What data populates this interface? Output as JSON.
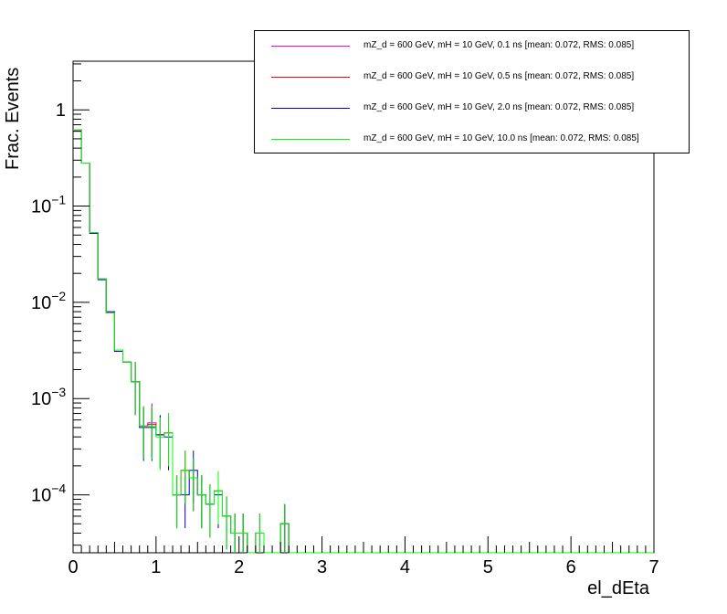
{
  "chart_data": {
    "type": "line",
    "xlabel": "el_dEta",
    "ylabel": "Frac. Events",
    "xlim": [
      0,
      7
    ],
    "ylim": [
      2.5e-05,
      3.2
    ],
    "yscale": "log",
    "x_ticks": [
      "0",
      "1",
      "2",
      "3",
      "4",
      "5",
      "6",
      "7"
    ],
    "y_ticks": [
      {
        "value": 1,
        "base": "1",
        "exp": ""
      },
      {
        "value": 0.1,
        "base": "10",
        "exp": "−1"
      },
      {
        "value": 0.01,
        "base": "10",
        "exp": "−2"
      },
      {
        "value": 0.001,
        "base": "10",
        "exp": "−3"
      },
      {
        "value": 0.0001,
        "base": "10",
        "exp": "−4"
      }
    ],
    "bin_width": 0.1,
    "legend_position": "top-right",
    "series": [
      {
        "name": "mZ_d = 600 GeV, mH = 10 GeV, 0.1 ns [mean: 0.072, RMS: 0.085]",
        "color": "#ff00ff",
        "values": [
          0.62,
          0.28,
          0.053,
          0.0175,
          0.0078,
          0.0032,
          0.0024,
          0.0015,
          0.00052,
          0.00056,
          0.00042,
          0.00044,
          0.0001,
          0.00018,
          0.00015,
          0.0001,
          8e-05,
          0.00011,
          6e-05,
          4e-05,
          4e-05,
          0,
          4e-05,
          0,
          0,
          5e-05,
          0
        ]
      },
      {
        "name": "mZ_d = 600 GeV, mH = 10 GeV, 0.5 ns [mean: 0.072, RMS: 0.085]",
        "color": "#ff0000",
        "values": [
          0.62,
          0.28,
          0.053,
          0.0175,
          0.0078,
          0.0032,
          0.0024,
          0.0015,
          0.00052,
          0.00054,
          0.00042,
          0.00044,
          0.0001,
          0.00018,
          0.00015,
          0.0001,
          8e-05,
          0.00011,
          6e-05,
          4e-05,
          4e-05,
          0,
          4e-05,
          0,
          0,
          5e-05,
          0
        ]
      },
      {
        "name": "mZ_d = 600 GeV, mH = 10 GeV, 2.0 ns [mean: 0.072, RMS: 0.085]",
        "color": "#0000cc",
        "values": [
          0.6,
          0.28,
          0.052,
          0.0172,
          0.008,
          0.0031,
          0.0024,
          0.0015,
          0.0005,
          0.0005,
          0.00042,
          0.0004,
          0.0001,
          0.0001,
          0.00018,
          0.0001,
          8e-05,
          0.0001,
          6e-05,
          4e-05,
          4e-05,
          0,
          4e-05,
          0,
          0,
          5e-05,
          0
        ]
      },
      {
        "name": "mZ_d = 600 GeV, mH = 10 GeV, 10.0 ns [mean: 0.072, RMS: 0.085]",
        "color": "#00ff00",
        "values": [
          0.62,
          0.28,
          0.053,
          0.0175,
          0.0078,
          0.0032,
          0.0024,
          0.0015,
          0.00052,
          0.00052,
          0.0004,
          0.00044,
          0.0001,
          0.00018,
          0.00015,
          0.0001,
          8e-05,
          0.00011,
          6e-05,
          4e-05,
          4e-05,
          0,
          4e-05,
          0,
          0,
          5e-05,
          0
        ]
      }
    ]
  }
}
